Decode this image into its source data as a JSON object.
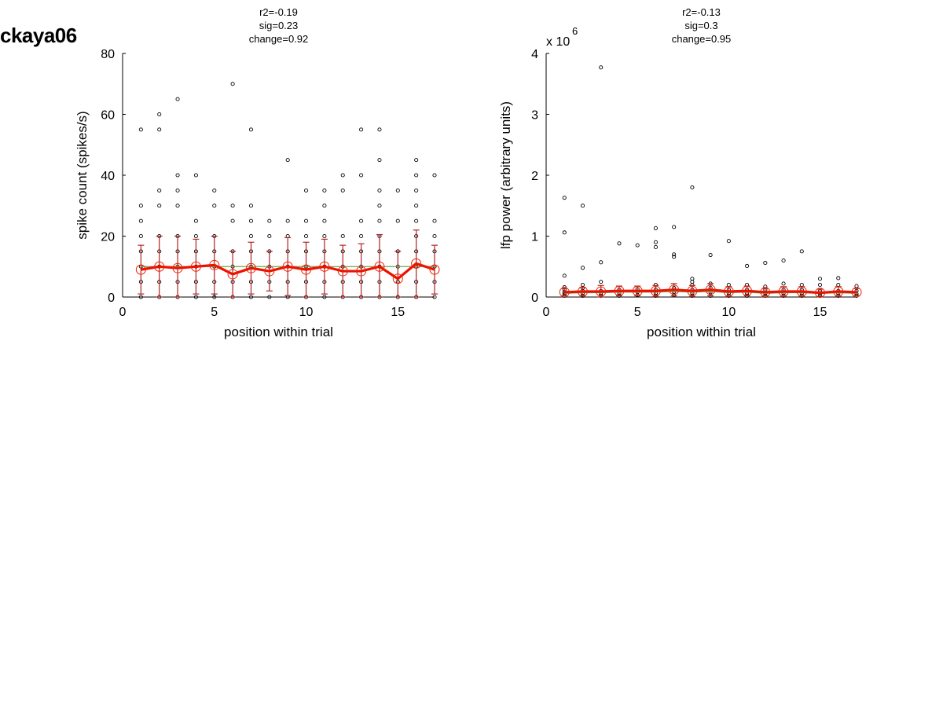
{
  "figure_label": "ckaya06",
  "colors": {
    "mean_line": "#ee1100",
    "errorbar": "#b22222",
    "mean_marker": "#ee2200",
    "median_line": "#6aa84f",
    "points": "#000000"
  },
  "chart_data": [
    {
      "type": "scatter",
      "title_lines": [
        "r2=-0.19",
        "sig=0.23",
        "change=0.92"
      ],
      "xlabel": "position within trial",
      "ylabel": "spike count (spikes/s)",
      "xlim": [
        0,
        17
      ],
      "ylim": [
        0,
        80
      ],
      "xticks": [
        0,
        5,
        10,
        15
      ],
      "yticks": [
        0,
        20,
        40,
        60,
        80
      ],
      "exponent_label": "",
      "points": [
        [
          1,
          0
        ],
        [
          1,
          5
        ],
        [
          1,
          10
        ],
        [
          1,
          15
        ],
        [
          1,
          20
        ],
        [
          1,
          25
        ],
        [
          1,
          30
        ],
        [
          1,
          55
        ],
        [
          2,
          0
        ],
        [
          2,
          5
        ],
        [
          2,
          10
        ],
        [
          2,
          15
        ],
        [
          2,
          20
        ],
        [
          2,
          30
        ],
        [
          2,
          35
        ],
        [
          2,
          55
        ],
        [
          2,
          60
        ],
        [
          3,
          0
        ],
        [
          3,
          5
        ],
        [
          3,
          10
        ],
        [
          3,
          15
        ],
        [
          3,
          20
        ],
        [
          3,
          30
        ],
        [
          3,
          35
        ],
        [
          3,
          40
        ],
        [
          3,
          65
        ],
        [
          4,
          0
        ],
        [
          4,
          5
        ],
        [
          4,
          10
        ],
        [
          4,
          15
        ],
        [
          4,
          20
        ],
        [
          4,
          25
        ],
        [
          4,
          40
        ],
        [
          5,
          0
        ],
        [
          5,
          5
        ],
        [
          5,
          10
        ],
        [
          5,
          15
        ],
        [
          5,
          20
        ],
        [
          5,
          30
        ],
        [
          5,
          35
        ],
        [
          6,
          0
        ],
        [
          6,
          5
        ],
        [
          6,
          10
        ],
        [
          6,
          15
        ],
        [
          6,
          25
        ],
        [
          6,
          30
        ],
        [
          6,
          70
        ],
        [
          7,
          0
        ],
        [
          7,
          5
        ],
        [
          7,
          10
        ],
        [
          7,
          15
        ],
        [
          7,
          20
        ],
        [
          7,
          25
        ],
        [
          7,
          30
        ],
        [
          7,
          55
        ],
        [
          8,
          0
        ],
        [
          8,
          5
        ],
        [
          8,
          10
        ],
        [
          8,
          15
        ],
        [
          8,
          20
        ],
        [
          8,
          25
        ],
        [
          9,
          0
        ],
        [
          9,
          5
        ],
        [
          9,
          10
        ],
        [
          9,
          15
        ],
        [
          9,
          20
        ],
        [
          9,
          25
        ],
        [
          9,
          45
        ],
        [
          10,
          0
        ],
        [
          10,
          5
        ],
        [
          10,
          10
        ],
        [
          10,
          15
        ],
        [
          10,
          20
        ],
        [
          10,
          25
        ],
        [
          10,
          35
        ],
        [
          11,
          0
        ],
        [
          11,
          5
        ],
        [
          11,
          10
        ],
        [
          11,
          15
        ],
        [
          11,
          20
        ],
        [
          11,
          25
        ],
        [
          11,
          30
        ],
        [
          11,
          35
        ],
        [
          12,
          0
        ],
        [
          12,
          5
        ],
        [
          12,
          10
        ],
        [
          12,
          15
        ],
        [
          12,
          20
        ],
        [
          12,
          35
        ],
        [
          12,
          40
        ],
        [
          13,
          0
        ],
        [
          13,
          5
        ],
        [
          13,
          10
        ],
        [
          13,
          15
        ],
        [
          13,
          20
        ],
        [
          13,
          25
        ],
        [
          13,
          40
        ],
        [
          13,
          55
        ],
        [
          14,
          0
        ],
        [
          14,
          5
        ],
        [
          14,
          10
        ],
        [
          14,
          15
        ],
        [
          14,
          20
        ],
        [
          14,
          25
        ],
        [
          14,
          30
        ],
        [
          14,
          35
        ],
        [
          14,
          45
        ],
        [
          14,
          55
        ],
        [
          15,
          0
        ],
        [
          15,
          5
        ],
        [
          15,
          10
        ],
        [
          15,
          15
        ],
        [
          15,
          25
        ],
        [
          15,
          35
        ],
        [
          16,
          0
        ],
        [
          16,
          5
        ],
        [
          16,
          10
        ],
        [
          16,
          15
        ],
        [
          16,
          20
        ],
        [
          16,
          25
        ],
        [
          16,
          30
        ],
        [
          16,
          35
        ],
        [
          16,
          40
        ],
        [
          16,
          45
        ],
        [
          17,
          0
        ],
        [
          17,
          5
        ],
        [
          17,
          10
        ],
        [
          17,
          15
        ],
        [
          17,
          20
        ],
        [
          17,
          25
        ],
        [
          17,
          40
        ]
      ],
      "mean": [
        9,
        10,
        9.5,
        10,
        10.5,
        7.5,
        9.5,
        8.5,
        10,
        9,
        10,
        8.5,
        8.5,
        10,
        6,
        11,
        9
      ],
      "sd": [
        8,
        10,
        10.5,
        9,
        9.5,
        7.5,
        8.5,
        6.5,
        9.5,
        9,
        9,
        8.5,
        9,
        10.5,
        9,
        11,
        8
      ],
      "median": [
        10,
        10,
        10,
        10,
        10,
        10,
        10,
        10,
        10,
        10,
        10,
        10,
        10,
        10,
        10,
        10,
        10
      ]
    },
    {
      "type": "scatter",
      "title_lines": [
        "r2=-0.13",
        "sig=0.3",
        "change=0.95"
      ],
      "xlabel": "position within trial",
      "ylabel": "lfp power (arbitrary units)",
      "xlim": [
        0,
        17
      ],
      "ylim": [
        0,
        4
      ],
      "xticks": [
        0,
        5,
        10,
        15
      ],
      "yticks": [
        0,
        1,
        2,
        3,
        4
      ],
      "exponent_label": "x 10",
      "exponent_power": "6",
      "points": [
        [
          1,
          0.02
        ],
        [
          1,
          0.05
        ],
        [
          1,
          0.08
        ],
        [
          1,
          0.12
        ],
        [
          1,
          0.16
        ],
        [
          1,
          0.35
        ],
        [
          1,
          1.06
        ],
        [
          1,
          1.63
        ],
        [
          2,
          0.02
        ],
        [
          2,
          0.06
        ],
        [
          2,
          0.1
        ],
        [
          2,
          0.15
        ],
        [
          2,
          0.2
        ],
        [
          2,
          0.48
        ],
        [
          2,
          1.5
        ],
        [
          3,
          0.02
        ],
        [
          3,
          0.05
        ],
        [
          3,
          0.1
        ],
        [
          3,
          0.25
        ],
        [
          3,
          0.57
        ],
        [
          3,
          3.77
        ],
        [
          4,
          0.02
        ],
        [
          4,
          0.06
        ],
        [
          4,
          0.12
        ],
        [
          4,
          0.88
        ],
        [
          5,
          0.03
        ],
        [
          5,
          0.08
        ],
        [
          5,
          0.13
        ],
        [
          5,
          0.85
        ],
        [
          6,
          0.02
        ],
        [
          6,
          0.06
        ],
        [
          6,
          0.12
        ],
        [
          6,
          0.2
        ],
        [
          6,
          0.82
        ],
        [
          6,
          0.9
        ],
        [
          6,
          1.13
        ],
        [
          7,
          0.03
        ],
        [
          7,
          0.08
        ],
        [
          7,
          0.15
        ],
        [
          7,
          0.66
        ],
        [
          7,
          0.7
        ],
        [
          7,
          1.15
        ],
        [
          8,
          0.02
        ],
        [
          8,
          0.06
        ],
        [
          8,
          0.12
        ],
        [
          8,
          0.2
        ],
        [
          8,
          0.25
        ],
        [
          8,
          0.3
        ],
        [
          8,
          1.8
        ],
        [
          9,
          0.02
        ],
        [
          9,
          0.08
        ],
        [
          9,
          0.15
        ],
        [
          9,
          0.22
        ],
        [
          9,
          0.69
        ],
        [
          10,
          0.02
        ],
        [
          10,
          0.06
        ],
        [
          10,
          0.12
        ],
        [
          10,
          0.2
        ],
        [
          10,
          0.92
        ],
        [
          11,
          0.02
        ],
        [
          11,
          0.06
        ],
        [
          11,
          0.12
        ],
        [
          11,
          0.2
        ],
        [
          11,
          0.51
        ],
        [
          12,
          0.02
        ],
        [
          12,
          0.06
        ],
        [
          12,
          0.12
        ],
        [
          12,
          0.17
        ],
        [
          12,
          0.56
        ],
        [
          13,
          0.02
        ],
        [
          13,
          0.06
        ],
        [
          13,
          0.12
        ],
        [
          13,
          0.22
        ],
        [
          13,
          0.6
        ],
        [
          14,
          0.02
        ],
        [
          14,
          0.06
        ],
        [
          14,
          0.12
        ],
        [
          14,
          0.2
        ],
        [
          14,
          0.75
        ],
        [
          15,
          0.02
        ],
        [
          15,
          0.06
        ],
        [
          15,
          0.1
        ],
        [
          15,
          0.2
        ],
        [
          15,
          0.3
        ],
        [
          16,
          0.02
        ],
        [
          16,
          0.06
        ],
        [
          16,
          0.1
        ],
        [
          16,
          0.2
        ],
        [
          16,
          0.31
        ],
        [
          17,
          0.02
        ],
        [
          17,
          0.05
        ],
        [
          17,
          0.1
        ],
        [
          17,
          0.18
        ]
      ],
      "mean": [
        0.08,
        0.09,
        0.09,
        0.1,
        0.1,
        0.1,
        0.12,
        0.1,
        0.12,
        0.09,
        0.1,
        0.08,
        0.09,
        0.09,
        0.07,
        0.09,
        0.08
      ],
      "sd": [
        0.06,
        0.07,
        0.1,
        0.08,
        0.08,
        0.09,
        0.1,
        0.09,
        0.1,
        0.08,
        0.08,
        0.06,
        0.08,
        0.08,
        0.06,
        0.08,
        0.06
      ],
      "median": [
        0.06,
        0.07,
        0.07,
        0.08,
        0.08,
        0.08,
        0.09,
        0.08,
        0.09,
        0.07,
        0.08,
        0.06,
        0.07,
        0.07,
        0.06,
        0.07,
        0.06
      ]
    }
  ]
}
